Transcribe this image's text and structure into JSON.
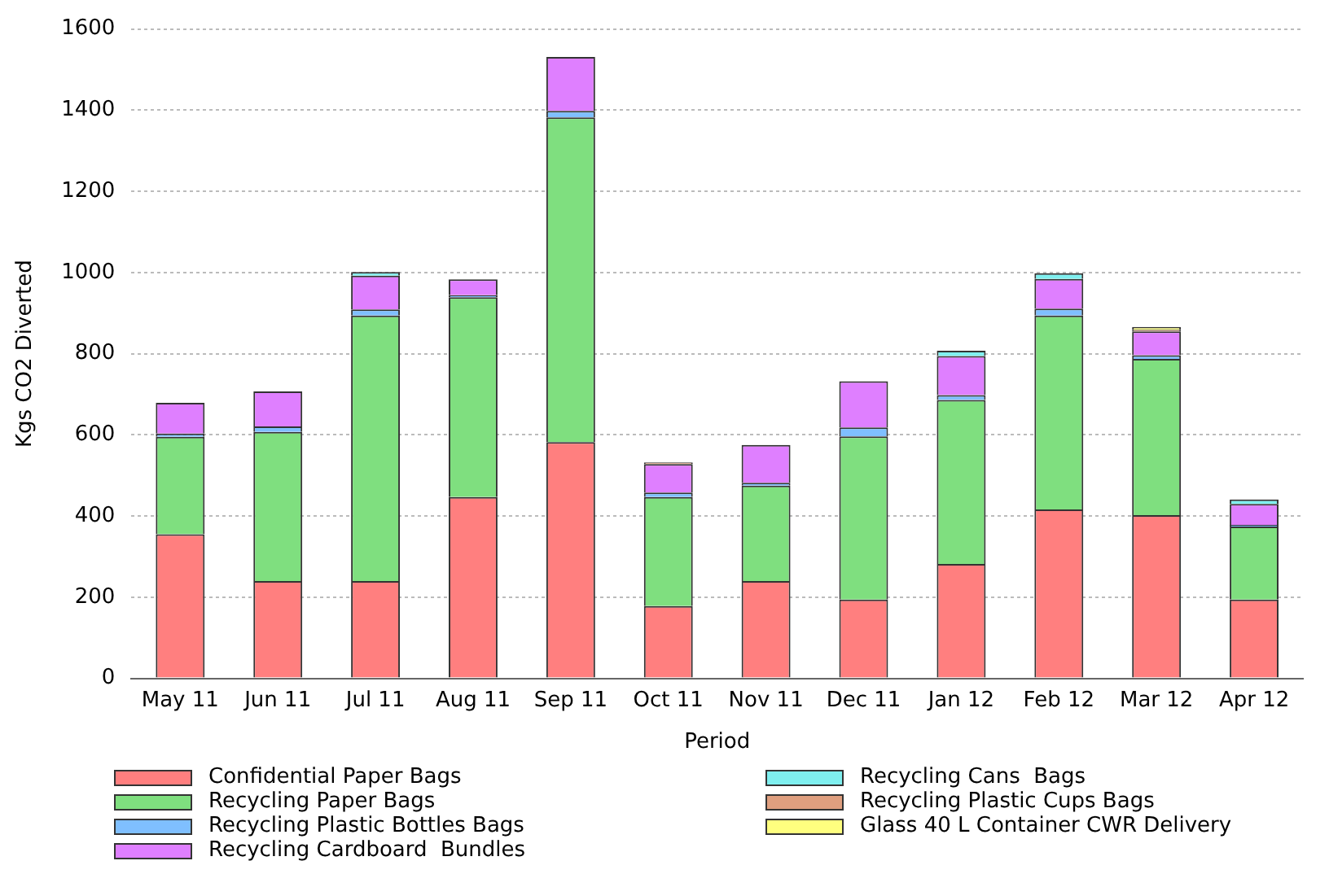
{
  "chart_data": {
    "type": "bar",
    "stacked": true,
    "xlabel": "Period",
    "ylabel": "Kgs CO2 Diverted",
    "categories": [
      "May 11",
      "Jun 11",
      "Jul 11",
      "Aug 11",
      "Sep 11",
      "Oct 11",
      "Nov 11",
      "Dec 11",
      "Jan 12",
      "Feb 12",
      "Mar 12",
      "Apr 12"
    ],
    "series": [
      {
        "name": "Confidential Paper Bags",
        "color": "#ff7f7f",
        "values": [
          355,
          240,
          240,
          447,
          582,
          178,
          240,
          194,
          282,
          416,
          402,
          194
        ]
      },
      {
        "name": "Recycling Paper Bags",
        "color": "#7fdf7f",
        "values": [
          240,
          367,
          654,
          492,
          800,
          269,
          235,
          402,
          404,
          478,
          385,
          180
        ]
      },
      {
        "name": "Recycling Plastic Bottles Bags",
        "color": "#7fbfff",
        "values": [
          8,
          14,
          15,
          5,
          16,
          11,
          7,
          22,
          12,
          17,
          9,
          4
        ]
      },
      {
        "name": "Recycling Cardboard  Bundles",
        "color": "#df7fff",
        "values": [
          76,
          86,
          83,
          39,
          133,
          70,
          93,
          114,
          96,
          73,
          59,
          52
        ]
      },
      {
        "name": "Recycling Cans  Bags",
        "color": "#7fefef",
        "values": [
          null,
          null,
          9,
          null,
          null,
          null,
          null,
          null,
          13,
          14,
          null,
          11
        ]
      },
      {
        "name": "Recycling Plastic Cups Bags",
        "color": "#df9f7f",
        "values": [
          null,
          null,
          null,
          null,
          null,
          4,
          null,
          null,
          null,
          null,
          4,
          null
        ]
      },
      {
        "name": "Glass 40 L Container CWR Delivery",
        "color": "#ffff7f",
        "values": [
          null,
          null,
          null,
          null,
          null,
          null,
          null,
          null,
          null,
          null,
          7,
          null
        ]
      }
    ],
    "ylim": [
      0,
      1600
    ],
    "yticks": [
      0,
      200,
      400,
      600,
      800,
      1000,
      1200,
      1400,
      1600
    ],
    "grid": "y",
    "legend": "bottom"
  }
}
